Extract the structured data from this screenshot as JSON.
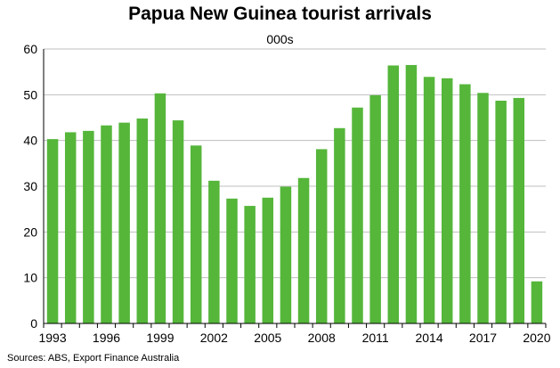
{
  "chart_data": {
    "type": "bar",
    "title": "Papua New Guinea tourist arrivals",
    "subtitle": "000s",
    "source": "Sources: ABS, Export Finance Australia",
    "xlabel": "",
    "ylabel": "",
    "ylim": [
      0,
      60
    ],
    "yticks": [
      0,
      10,
      20,
      30,
      40,
      50,
      60
    ],
    "grid": true,
    "bar_color": "#55b63a",
    "categories": [
      "1993",
      "1994",
      "1995",
      "1996",
      "1997",
      "1998",
      "1999",
      "2000",
      "2001",
      "2002",
      "2003",
      "2004",
      "2005",
      "2006",
      "2007",
      "2008",
      "2009",
      "2010",
      "2011",
      "2012",
      "2013",
      "2014",
      "2015",
      "2016",
      "2017",
      "2018",
      "2019",
      "2020"
    ],
    "xtick_labels": [
      "1993",
      "1996",
      "1999",
      "2002",
      "2005",
      "2008",
      "2011",
      "2014",
      "2017",
      "2020"
    ],
    "values": [
      40.3,
      41.8,
      42.1,
      43.3,
      43.9,
      44.8,
      50.3,
      44.4,
      38.9,
      31.2,
      27.3,
      25.7,
      27.5,
      29.9,
      31.8,
      38.1,
      42.7,
      47.2,
      49.9,
      56.4,
      56.5,
      53.9,
      53.6,
      52.3,
      50.4,
      48.7,
      49.3,
      9.2
    ]
  }
}
